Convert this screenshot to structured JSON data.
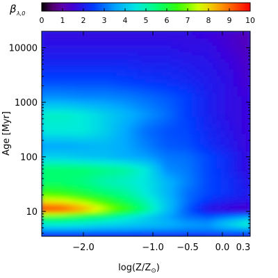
{
  "chart_data": {
    "type": "heatmap",
    "colorbar": {
      "symbol": "β",
      "symbol_subscript": "λ,0",
      "ticks": [
        0,
        1,
        2,
        3,
        4,
        5,
        6,
        7,
        8,
        9,
        10
      ],
      "range": [
        0,
        10
      ],
      "colormap": "rainbow (black-purple-blue-cyan-green-yellow-orange-red)"
    },
    "xaxis": {
      "label_main": "log(Z/Z",
      "label_sub": "⊙",
      "label_end": ")",
      "range": [
        -2.6,
        0.4
      ],
      "ticks": [
        {
          "value": -2.0,
          "label": "−2.0"
        },
        {
          "value": -1.0,
          "label": "−1.0"
        },
        {
          "value": -0.5,
          "label": "−0.5"
        },
        {
          "value": 0.0,
          "label": "0.0"
        },
        {
          "value": 0.3,
          "label": "0.3"
        }
      ]
    },
    "yaxis": {
      "label": "Age [Myr]",
      "scale": "log",
      "range": [
        3.5,
        20000
      ],
      "ticks": [
        {
          "value": 10,
          "label": "10"
        },
        {
          "value": 100,
          "label": "100"
        },
        {
          "value": 1000,
          "label": "1000"
        },
        {
          "value": 10000,
          "label": "10000"
        }
      ]
    },
    "x": [
      -2.6,
      -2.3,
      -2.0,
      -1.7,
      -1.4,
      -1.1,
      -0.8,
      -0.5,
      -0.2,
      0.1,
      0.4
    ],
    "y": [
      3.5,
      4.5,
      6,
      8,
      11,
      15,
      22,
      35,
      60,
      100,
      160,
      300,
      600,
      1200,
      2500,
      5000,
      10000,
      20000
    ],
    "z": [
      [
        1.8,
        1.8,
        1.8,
        1.8,
        1.8,
        1.8,
        1.8,
        1.8,
        1.8,
        1.8,
        1.8
      ],
      [
        3.5,
        3.5,
        3.5,
        3.4,
        3.4,
        3.3,
        3.3,
        3.2,
        3.2,
        3.3,
        3.4
      ],
      [
        4.8,
        4.8,
        4.6,
        4.4,
        4.2,
        4.0,
        3.8,
        3.5,
        3.4,
        4.2,
        5.0
      ],
      [
        6.2,
        6.1,
        5.8,
        5.4,
        4.8,
        4.2,
        3.6,
        3.0,
        2.8,
        3.2,
        3.6
      ],
      [
        9.6,
        9.4,
        8.6,
        7.6,
        6.6,
        5.4,
        4.0,
        2.8,
        1.8,
        1.5,
        1.3
      ],
      [
        8.0,
        7.9,
        7.4,
        6.6,
        5.8,
        5.0,
        4.0,
        3.0,
        2.3,
        2.0,
        1.8
      ],
      [
        6.6,
        6.4,
        6.0,
        5.6,
        5.2,
        4.6,
        3.8,
        3.0,
        2.6,
        2.3,
        2.0
      ],
      [
        5.6,
        5.6,
        5.4,
        5.0,
        4.8,
        4.5,
        3.8,
        3.2,
        2.6,
        2.3,
        1.9
      ],
      [
        5.6,
        5.6,
        5.6,
        5.4,
        5.2,
        4.6,
        3.3,
        3.1,
        2.6,
        2.2,
        1.7
      ],
      [
        4.2,
        4.2,
        4.0,
        3.9,
        3.7,
        3.5,
        3.1,
        3.0,
        2.6,
        2.2,
        1.7
      ],
      [
        3.6,
        3.6,
        3.7,
        3.8,
        3.6,
        3.2,
        2.8,
        2.7,
        2.3,
        2.0,
        1.6
      ],
      [
        4.6,
        4.6,
        4.6,
        4.2,
        3.6,
        3.0,
        2.7,
        2.6,
        2.2,
        1.9,
        1.6
      ],
      [
        4.8,
        4.8,
        4.6,
        4.2,
        3.8,
        3.4,
        3.0,
        2.5,
        2.1,
        1.8,
        1.6
      ],
      [
        3.4,
        3.4,
        3.3,
        3.3,
        3.2,
        3.0,
        2.8,
        2.5,
        2.1,
        1.8,
        1.6
      ],
      [
        2.6,
        2.6,
        2.6,
        2.6,
        2.5,
        2.4,
        2.3,
        2.2,
        2.0,
        1.8,
        1.4
      ],
      [
        2.2,
        2.2,
        2.2,
        2.2,
        2.2,
        2.1,
        2.1,
        2.0,
        1.9,
        1.7,
        1.3
      ],
      [
        1.9,
        1.9,
        1.9,
        1.9,
        1.9,
        1.9,
        1.9,
        1.8,
        1.8,
        1.5,
        1.2
      ],
      [
        1.7,
        1.7,
        1.7,
        1.7,
        1.7,
        1.7,
        1.7,
        1.7,
        1.6,
        1.4,
        1.1
      ]
    ]
  }
}
